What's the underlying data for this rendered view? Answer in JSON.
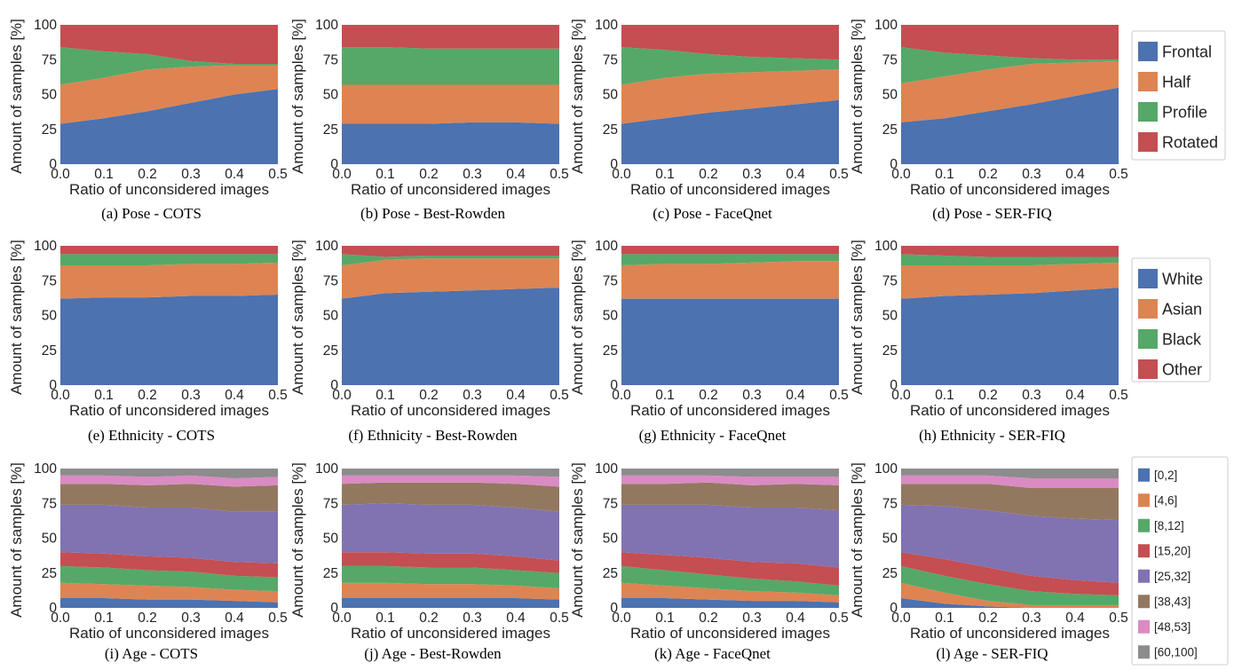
{
  "figure": {
    "legends": [
      {
        "entries": [
          "Frontal",
          "Half",
          "Profile",
          "Rotated"
        ]
      },
      {
        "entries": [
          "White",
          "Asian",
          "Black",
          "Other"
        ]
      },
      {
        "entries": [
          "[0,2]",
          "[4,6]",
          "[8,12]",
          "[15,20]",
          "[25,32]",
          "[38,43]",
          "[48,53]",
          "[60,100]"
        ]
      }
    ],
    "colors": [
      "#4c72b0",
      "#dd8452",
      "#55a868",
      "#c44e52",
      "#8172b2",
      "#937860",
      "#da8bc3",
      "#8c8c8c"
    ]
  },
  "chart_data": [
    {
      "type": "area",
      "caption": "(a) Pose - COTS",
      "xlabel": "Ratio of unconsidered images",
      "ylabel": "Amount of samples [%]",
      "x": [
        0,
        0.1,
        0.2,
        0.3,
        0.4,
        0.5
      ],
      "xticks": [
        "0.0",
        "0.1",
        "0.2",
        "0.3",
        "0.4",
        "0.5"
      ],
      "ylim": [
        0,
        100
      ],
      "yticks": [
        "0",
        "25",
        "50",
        "75",
        "100"
      ],
      "stacked": true,
      "series": [
        {
          "name": "Frontal",
          "values": [
            29,
            33,
            38,
            44,
            50,
            54
          ]
        },
        {
          "name": "Half",
          "values": [
            28,
            29,
            30,
            26,
            21,
            17
          ]
        },
        {
          "name": "Profile",
          "values": [
            27,
            19,
            11,
            4,
            1,
            1
          ]
        },
        {
          "name": "Rotated",
          "values": [
            16,
            19,
            21,
            26,
            28,
            28
          ]
        }
      ]
    },
    {
      "type": "area",
      "caption": "(b) Pose - Best-Rowden",
      "xlabel": "Ratio of unconsidered images",
      "ylabel": "Amount of samples [%]",
      "x": [
        0,
        0.1,
        0.2,
        0.3,
        0.4,
        0.5
      ],
      "xticks": [
        "0.0",
        "0.1",
        "0.2",
        "0.3",
        "0.4",
        "0.5"
      ],
      "ylim": [
        0,
        100
      ],
      "yticks": [
        "0",
        "25",
        "50",
        "75",
        "100"
      ],
      "stacked": true,
      "series": [
        {
          "name": "Frontal",
          "values": [
            29,
            29,
            29,
            30,
            30,
            29
          ]
        },
        {
          "name": "Half",
          "values": [
            28,
            28,
            28,
            27,
            27,
            28
          ]
        },
        {
          "name": "Profile",
          "values": [
            27,
            27,
            26,
            26,
            26,
            26
          ]
        },
        {
          "name": "Rotated",
          "values": [
            16,
            16,
            17,
            17,
            17,
            17
          ]
        }
      ]
    },
    {
      "type": "area",
      "caption": "(c) Pose - FaceQnet",
      "xlabel": "Ratio of unconsidered images",
      "ylabel": "Amount of samples [%]",
      "x": [
        0,
        0.1,
        0.2,
        0.3,
        0.4,
        0.5
      ],
      "xticks": [
        "0.0",
        "0.1",
        "0.2",
        "0.3",
        "0.4",
        "0.5"
      ],
      "ylim": [
        0,
        100
      ],
      "yticks": [
        "0",
        "25",
        "50",
        "75",
        "100"
      ],
      "stacked": true,
      "series": [
        {
          "name": "Frontal",
          "values": [
            29,
            33,
            37,
            40,
            43,
            46
          ]
        },
        {
          "name": "Half",
          "values": [
            28,
            29,
            28,
            26,
            24,
            22
          ]
        },
        {
          "name": "Profile",
          "values": [
            27,
            20,
            14,
            11,
            9,
            7
          ]
        },
        {
          "name": "Rotated",
          "values": [
            16,
            18,
            21,
            23,
            24,
            25
          ]
        }
      ]
    },
    {
      "type": "area",
      "caption": "(d) Pose - SER-FIQ",
      "xlabel": "Ratio of unconsidered images",
      "ylabel": "Amount of samples [%]",
      "x": [
        0,
        0.1,
        0.2,
        0.3,
        0.4,
        0.5
      ],
      "xticks": [
        "0.0",
        "0.1",
        "0.2",
        "0.3",
        "0.4",
        "0.5"
      ],
      "ylim": [
        0,
        100
      ],
      "yticks": [
        "0",
        "25",
        "50",
        "75",
        "100"
      ],
      "stacked": true,
      "series": [
        {
          "name": "Frontal",
          "values": [
            30,
            33,
            38,
            43,
            49,
            55
          ]
        },
        {
          "name": "Half",
          "values": [
            28,
            30,
            30,
            29,
            24,
            19
          ]
        },
        {
          "name": "Profile",
          "values": [
            26,
            17,
            10,
            4,
            2,
            1
          ]
        },
        {
          "name": "Rotated",
          "values": [
            16,
            20,
            22,
            24,
            25,
            25
          ]
        }
      ]
    },
    {
      "type": "area",
      "caption": "(e) Ethnicity - COTS",
      "xlabel": "Ratio of unconsidered images",
      "ylabel": "Amount of samples [%]",
      "x": [
        0,
        0.1,
        0.2,
        0.3,
        0.4,
        0.5
      ],
      "xticks": [
        "0.0",
        "0.1",
        "0.2",
        "0.3",
        "0.4",
        "0.5"
      ],
      "ylim": [
        0,
        100
      ],
      "yticks": [
        "0",
        "25",
        "50",
        "75",
        "100"
      ],
      "stacked": true,
      "series": [
        {
          "name": "White",
          "values": [
            62,
            63,
            63,
            64,
            64,
            65
          ]
        },
        {
          "name": "Asian",
          "values": [
            24,
            23,
            23,
            23,
            23,
            23
          ]
        },
        {
          "name": "Black",
          "values": [
            8,
            8,
            8,
            7,
            7,
            6
          ]
        },
        {
          "name": "Other",
          "values": [
            6,
            6,
            6,
            6,
            6,
            6
          ]
        }
      ]
    },
    {
      "type": "area",
      "caption": "(f) Ethnicity - Best-Rowden",
      "xlabel": "Ratio of unconsidered images",
      "ylabel": "Amount of samples [%]",
      "x": [
        0,
        0.1,
        0.2,
        0.3,
        0.4,
        0.5
      ],
      "xticks": [
        "0.0",
        "0.1",
        "0.2",
        "0.3",
        "0.4",
        "0.5"
      ],
      "ylim": [
        0,
        100
      ],
      "yticks": [
        "0",
        "25",
        "50",
        "75",
        "100"
      ],
      "stacked": true,
      "series": [
        {
          "name": "White",
          "values": [
            62,
            66,
            67,
            68,
            69,
            70
          ]
        },
        {
          "name": "Asian",
          "values": [
            24,
            24,
            24,
            23,
            22,
            21
          ]
        },
        {
          "name": "Black",
          "values": [
            8,
            2,
            2,
            2,
            2,
            2
          ]
        },
        {
          "name": "Other",
          "values": [
            6,
            8,
            7,
            7,
            7,
            7
          ]
        }
      ]
    },
    {
      "type": "area",
      "caption": "(g) Ethnicity - FaceQnet",
      "xlabel": "Ratio of unconsidered images",
      "ylabel": "Amount of samples [%]",
      "x": [
        0,
        0.1,
        0.2,
        0.3,
        0.4,
        0.5
      ],
      "xticks": [
        "0.0",
        "0.1",
        "0.2",
        "0.3",
        "0.4",
        "0.5"
      ],
      "ylim": [
        0,
        100
      ],
      "yticks": [
        "0",
        "25",
        "50",
        "75",
        "100"
      ],
      "stacked": true,
      "series": [
        {
          "name": "White",
          "values": [
            62,
            62,
            62,
            62,
            62,
            62
          ]
        },
        {
          "name": "Asian",
          "values": [
            24,
            25,
            25,
            26,
            27,
            27
          ]
        },
        {
          "name": "Black",
          "values": [
            8,
            7,
            7,
            6,
            5,
            5
          ]
        },
        {
          "name": "Other",
          "values": [
            6,
            6,
            6,
            6,
            6,
            6
          ]
        }
      ]
    },
    {
      "type": "area",
      "caption": "(h) Ethnicity - SER-FIQ",
      "xlabel": "Ratio of unconsidered images",
      "ylabel": "Amount of samples [%]",
      "x": [
        0,
        0.1,
        0.2,
        0.3,
        0.4,
        0.5
      ],
      "xticks": [
        "0.0",
        "0.1",
        "0.2",
        "0.3",
        "0.4",
        "0.5"
      ],
      "ylim": [
        0,
        100
      ],
      "yticks": [
        "0",
        "25",
        "50",
        "75",
        "100"
      ],
      "stacked": true,
      "series": [
        {
          "name": "White",
          "values": [
            62,
            64,
            65,
            66,
            68,
            70
          ]
        },
        {
          "name": "Asian",
          "values": [
            24,
            22,
            21,
            20,
            19,
            18
          ]
        },
        {
          "name": "Black",
          "values": [
            8,
            7,
            6,
            6,
            5,
            4
          ]
        },
        {
          "name": "Other",
          "values": [
            6,
            7,
            8,
            8,
            8,
            8
          ]
        }
      ]
    },
    {
      "type": "area",
      "caption": "(i) Age - COTS",
      "xlabel": "Ratio of unconsidered images",
      "ylabel": "Amount of samples [%]",
      "x": [
        0,
        0.1,
        0.2,
        0.3,
        0.4,
        0.5
      ],
      "xticks": [
        "0.0",
        "0.1",
        "0.2",
        "0.3",
        "0.4",
        "0.5"
      ],
      "ylim": [
        0,
        100
      ],
      "yticks": [
        "0",
        "25",
        "50",
        "75",
        "100"
      ],
      "stacked": true,
      "series": [
        {
          "name": "[0,2]",
          "values": [
            7,
            7,
            6,
            6,
            5,
            4
          ]
        },
        {
          "name": "[4,6]",
          "values": [
            11,
            10,
            10,
            9,
            8,
            8
          ]
        },
        {
          "name": "[8,12]",
          "values": [
            12,
            12,
            11,
            11,
            10,
            10
          ]
        },
        {
          "name": "[15,20]",
          "values": [
            10,
            10,
            10,
            10,
            10,
            10
          ]
        },
        {
          "name": "[25,32]",
          "values": [
            34,
            35,
            35,
            36,
            36,
            37
          ]
        },
        {
          "name": "[38,43]",
          "values": [
            15,
            15,
            16,
            17,
            18,
            19
          ]
        },
        {
          "name": "[48,53]",
          "values": [
            6,
            6,
            6,
            6,
            6,
            6
          ]
        },
        {
          "name": "[60,100]",
          "values": [
            5,
            5,
            6,
            5,
            7,
            6
          ]
        }
      ]
    },
    {
      "type": "area",
      "caption": "(j) Age - Best-Rowden",
      "xlabel": "Ratio of unconsidered images",
      "ylabel": "Amount of samples [%]",
      "x": [
        0,
        0.1,
        0.2,
        0.3,
        0.4,
        0.5
      ],
      "xticks": [
        "0.0",
        "0.1",
        "0.2",
        "0.3",
        "0.4",
        "0.5"
      ],
      "ylim": [
        0,
        100
      ],
      "yticks": [
        "0",
        "25",
        "50",
        "75",
        "100"
      ],
      "stacked": true,
      "series": [
        {
          "name": "[0,2]",
          "values": [
            7,
            7,
            7,
            7,
            7,
            6
          ]
        },
        {
          "name": "[4,6]",
          "values": [
            11,
            11,
            10,
            10,
            9,
            8
          ]
        },
        {
          "name": "[8,12]",
          "values": [
            12,
            12,
            12,
            12,
            11,
            11
          ]
        },
        {
          "name": "[15,20]",
          "values": [
            10,
            10,
            10,
            10,
            10,
            9
          ]
        },
        {
          "name": "[25,32]",
          "values": [
            34,
            35,
            35,
            35,
            35,
            35
          ]
        },
        {
          "name": "[38,43]",
          "values": [
            15,
            15,
            16,
            16,
            17,
            18
          ]
        },
        {
          "name": "[48,53]",
          "values": [
            6,
            5,
            5,
            5,
            6,
            7
          ]
        },
        {
          "name": "[60,100]",
          "values": [
            5,
            5,
            5,
            5,
            5,
            6
          ]
        }
      ]
    },
    {
      "type": "area",
      "caption": "(k) Age - FaceQnet",
      "xlabel": "Ratio of unconsidered images",
      "ylabel": "Amount of samples [%]",
      "x": [
        0,
        0.1,
        0.2,
        0.3,
        0.4,
        0.5
      ],
      "xticks": [
        "0.0",
        "0.1",
        "0.2",
        "0.3",
        "0.4",
        "0.5"
      ],
      "ylim": [
        0,
        100
      ],
      "yticks": [
        "0",
        "25",
        "50",
        "75",
        "100"
      ],
      "stacked": true,
      "series": [
        {
          "name": "[0,2]",
          "values": [
            7,
            7,
            6,
            5,
            5,
            4
          ]
        },
        {
          "name": "[4,6]",
          "values": [
            11,
            9,
            8,
            7,
            6,
            5
          ]
        },
        {
          "name": "[8,12]",
          "values": [
            12,
            11,
            10,
            9,
            8,
            7
          ]
        },
        {
          "name": "[15,20]",
          "values": [
            10,
            11,
            12,
            12,
            13,
            13
          ]
        },
        {
          "name": "[25,32]",
          "values": [
            34,
            36,
            38,
            39,
            40,
            41
          ]
        },
        {
          "name": "[38,43]",
          "values": [
            15,
            15,
            16,
            16,
            17,
            18
          ]
        },
        {
          "name": "[48,53]",
          "values": [
            6,
            6,
            5,
            6,
            5,
            6
          ]
        },
        {
          "name": "[60,100]",
          "values": [
            5,
            5,
            5,
            6,
            6,
            6
          ]
        }
      ]
    },
    {
      "type": "area",
      "caption": "(l) Age - SER-FIQ",
      "xlabel": "Ratio of unconsidered images",
      "ylabel": "Amount of samples [%]",
      "x": [
        0,
        0.1,
        0.2,
        0.3,
        0.4,
        0.5
      ],
      "xticks": [
        "0.0",
        "0.1",
        "0.2",
        "0.3",
        "0.4",
        "0.5"
      ],
      "ylim": [
        0,
        100
      ],
      "yticks": [
        "0",
        "25",
        "50",
        "75",
        "100"
      ],
      "stacked": true,
      "series": [
        {
          "name": "[0,2]",
          "values": [
            7,
            3,
            1,
            0,
            0,
            0
          ]
        },
        {
          "name": "[4,6]",
          "values": [
            11,
            8,
            4,
            2,
            2,
            2
          ]
        },
        {
          "name": "[8,12]",
          "values": [
            12,
            12,
            12,
            10,
            8,
            7
          ]
        },
        {
          "name": "[15,20]",
          "values": [
            10,
            12,
            12,
            11,
            10,
            9
          ]
        },
        {
          "name": "[25,32]",
          "values": [
            34,
            38,
            41,
            43,
            44,
            45
          ]
        },
        {
          "name": "[38,43]",
          "values": [
            15,
            16,
            19,
            20,
            22,
            23
          ]
        },
        {
          "name": "[48,53]",
          "values": [
            6,
            6,
            6,
            7,
            7,
            7
          ]
        },
        {
          "name": "[60,100]",
          "values": [
            5,
            5,
            5,
            7,
            7,
            7
          ]
        }
      ]
    }
  ]
}
